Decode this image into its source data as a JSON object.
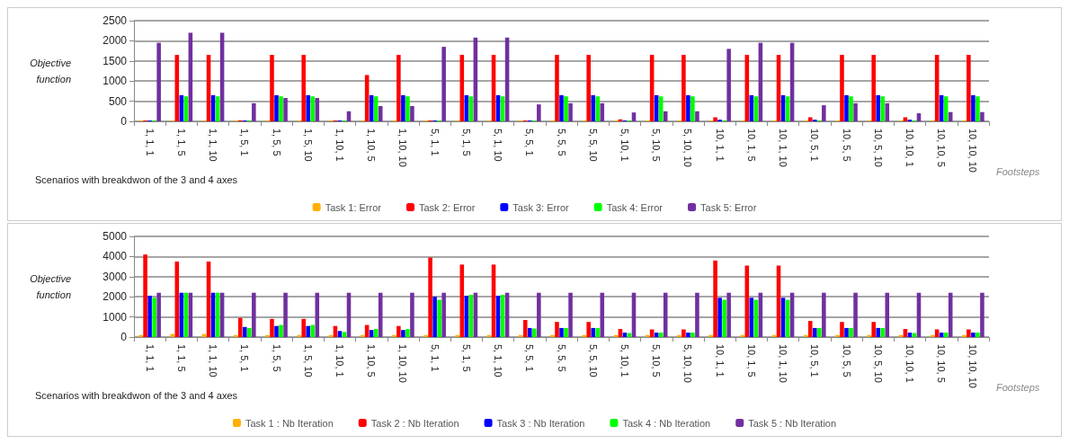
{
  "chart_data": [
    {
      "type": "bar",
      "xlabel": "Footsteps",
      "ylabel": "Objective function",
      "annotations": [
        "Scenarios with breakdwon of the 3 and 4 axes"
      ],
      "categories": [
        "1, 1, 1",
        "1, 1, 5",
        "1, 1, 10",
        "1, 5, 1",
        "1, 5, 5",
        "1, 5, 10",
        "1, 10, 1",
        "1, 10, 5",
        "1, 10, 10",
        "5, 1, 1",
        "5, 1, 5",
        "5, 1, 10",
        "5, 5, 1",
        "5, 5, 5",
        "5, 5, 10",
        "5, 10, 1",
        "5, 10, 5",
        "5, 10, 10",
        "10, 1, 1",
        "10, 1, 5",
        "10, 1, 10",
        "10, 5, 1",
        "10, 5, 5",
        "10, 5, 10",
        "10, 10, 1",
        "10, 10, 5",
        "10, 10, 10"
      ],
      "ylim": [
        0,
        2500
      ],
      "yticks": [
        0,
        500,
        1000,
        1500,
        2000,
        2500
      ],
      "grid": "y",
      "legend": "bottom",
      "series": [
        {
          "name": "Task 1: Error",
          "color": "#ffb000",
          "values": [
            20,
            20,
            20,
            20,
            20,
            20,
            20,
            20,
            20,
            20,
            20,
            20,
            20,
            20,
            20,
            20,
            20,
            20,
            20,
            20,
            20,
            20,
            20,
            20,
            20,
            20,
            20
          ]
        },
        {
          "name": "Task 2: Error",
          "color": "#ff0000",
          "values": [
            20,
            1650,
            1650,
            20,
            1650,
            1650,
            20,
            1150,
            1650,
            20,
            1650,
            1650,
            20,
            1650,
            1650,
            50,
            1650,
            1650,
            100,
            1650,
            1650,
            100,
            1650,
            1650,
            100,
            1650,
            1650
          ]
        },
        {
          "name": "Task 3: Error",
          "color": "#0000ff",
          "values": [
            20,
            650,
            650,
            20,
            650,
            650,
            20,
            650,
            650,
            20,
            650,
            650,
            20,
            650,
            650,
            20,
            650,
            650,
            40,
            650,
            650,
            40,
            650,
            650,
            40,
            650,
            650
          ]
        },
        {
          "name": "Task 4: Error",
          "color": "#00ff00",
          "values": [
            20,
            620,
            620,
            20,
            620,
            620,
            20,
            620,
            620,
            20,
            620,
            620,
            20,
            620,
            620,
            20,
            620,
            620,
            20,
            620,
            620,
            20,
            620,
            620,
            20,
            620,
            620
          ]
        },
        {
          "name": "Task 5: Error",
          "color": "#7030a0",
          "values": [
            1950,
            2200,
            2200,
            450,
            580,
            580,
            250,
            380,
            380,
            1850,
            2080,
            2080,
            420,
            450,
            450,
            220,
            250,
            250,
            1800,
            1950,
            1950,
            400,
            450,
            450,
            200,
            230,
            230
          ]
        }
      ]
    },
    {
      "type": "bar",
      "xlabel": "Footsteps",
      "ylabel": "Objective function",
      "annotations": [
        "Scenarios with breakdwon of the 3 and 4 axes"
      ],
      "categories": [
        "1, 1, 1",
        "1, 1, 5",
        "1, 1, 10",
        "1, 5, 1",
        "1, 5, 5",
        "1, 5, 10",
        "1, 10, 1",
        "1, 10, 5",
        "1, 10, 10",
        "5, 1, 1",
        "5, 1, 5",
        "5, 1, 10",
        "5, 5, 1",
        "5, 5, 5",
        "5, 5, 10",
        "5, 10, 1",
        "5, 10, 5",
        "5, 10, 10",
        "10, 1, 1",
        "10, 1, 5",
        "10, 1, 10",
        "10, 5, 1",
        "10, 5, 5",
        "10, 5, 10",
        "10, 10, 1",
        "10, 10, 5",
        "10, 10, 10"
      ],
      "ylim": [
        0,
        5000
      ],
      "yticks": [
        0,
        1000,
        2000,
        3000,
        4000,
        5000
      ],
      "grid": "y",
      "legend": "bottom",
      "series": [
        {
          "name": "Task 1 : Nb Iteration",
          "color": "#ffb000",
          "values": [
            100,
            150,
            150,
            100,
            100,
            100,
            100,
            100,
            100,
            100,
            100,
            100,
            100,
            100,
            100,
            100,
            100,
            100,
            100,
            100,
            100,
            100,
            100,
            100,
            100,
            100,
            100
          ]
        },
        {
          "name": "Task 2 : Nb Iteration",
          "color": "#ff0000",
          "values": [
            4100,
            3750,
            3750,
            950,
            900,
            900,
            550,
            600,
            550,
            3950,
            3600,
            3600,
            850,
            750,
            750,
            400,
            380,
            380,
            3800,
            3550,
            3550,
            800,
            750,
            750,
            400,
            380,
            380
          ]
        },
        {
          "name": "Task 3 : Nb Iteration",
          "color": "#0000ff",
          "values": [
            2050,
            2200,
            2200,
            500,
            550,
            550,
            300,
            350,
            350,
            2000,
            2050,
            2050,
            450,
            450,
            450,
            220,
            220,
            220,
            1950,
            1950,
            1950,
            450,
            450,
            450,
            220,
            220,
            220
          ]
        },
        {
          "name": "Task 4 : Nb Iteration",
          "color": "#00ff00",
          "values": [
            1950,
            2200,
            2200,
            450,
            600,
            600,
            250,
            400,
            400,
            1850,
            2100,
            2100,
            420,
            450,
            450,
            200,
            220,
            220,
            1850,
            1850,
            1850,
            450,
            450,
            450,
            200,
            220,
            220
          ]
        },
        {
          "name": "Task 5 : Nb Iteration",
          "color": "#7030a0",
          "values": [
            2200,
            2200,
            2200,
            2200,
            2200,
            2200,
            2200,
            2200,
            2200,
            2200,
            2200,
            2200,
            2200,
            2200,
            2200,
            2200,
            2200,
            2200,
            2200,
            2200,
            2200,
            2200,
            2200,
            2200,
            2200,
            2200,
            2200
          ]
        }
      ]
    }
  ]
}
